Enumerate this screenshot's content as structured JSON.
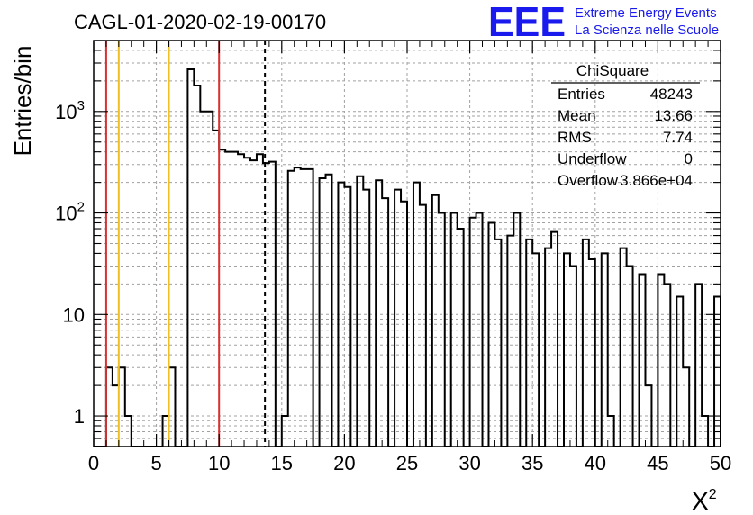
{
  "chart_data": {
    "type": "bar",
    "title": "CAGL-01-2020-02-19-00170",
    "xlabel": "X",
    "xlabel_superscript": "2",
    "ylabel": "Entries/bin",
    "xlim": [
      0,
      50
    ],
    "ylim": [
      0.5,
      5000
    ],
    "yscale": "log",
    "grid": true,
    "bin_width": 0.5,
    "x_ticks": [
      "0",
      "5",
      "10",
      "15",
      "20",
      "25",
      "30",
      "35",
      "40",
      "45",
      "50"
    ],
    "y_ticks": [
      {
        "value": 1,
        "label": "1"
      },
      {
        "value": 10,
        "label": "10"
      },
      {
        "value": 100,
        "label": "10",
        "exp": "2"
      },
      {
        "value": 1000,
        "label": "10",
        "exp": "3"
      }
    ],
    "values": [
      0,
      0,
      3,
      2,
      3,
      1,
      0,
      0,
      0,
      0,
      0,
      1,
      3,
      0,
      0,
      2600,
      1800,
      1000,
      1000,
      650,
      420,
      400,
      400,
      380,
      350,
      330,
      380,
      310,
      320,
      0,
      1,
      260,
      280,
      270,
      270,
      0,
      220,
      240,
      0,
      200,
      180,
      0,
      230,
      170,
      0,
      210,
      140,
      0,
      170,
      130,
      0,
      200,
      120,
      0,
      150,
      100,
      0,
      100,
      70,
      0,
      90,
      100,
      0,
      80,
      55,
      0,
      60,
      100,
      0,
      55,
      40,
      0,
      45,
      65,
      0,
      40,
      30,
      0,
      55,
      35,
      0,
      40,
      1,
      0,
      45,
      30,
      0,
      25,
      2,
      0,
      25,
      20,
      0,
      15,
      3,
      0,
      20,
      1,
      0,
      15
    ],
    "stats": {
      "title": "ChiSquare",
      "rows": [
        {
          "label": "Entries",
          "value": "48243"
        },
        {
          "label": "Mean",
          "value": "13.66"
        },
        {
          "label": "RMS",
          "value": "7.74"
        },
        {
          "label": "Underflow",
          "value": "0"
        },
        {
          "label": "Overflow",
          "value": "3.866e+04"
        }
      ]
    },
    "vertical_lines": [
      {
        "x": 1,
        "color": "#d93030",
        "style": "solid"
      },
      {
        "x": 2,
        "color": "#f0c020",
        "style": "solid"
      },
      {
        "x": 6,
        "color": "#f0c020",
        "style": "solid"
      },
      {
        "x": 10,
        "color": "#d93030",
        "style": "solid"
      },
      {
        "x": 13.66,
        "color": "#000000",
        "style": "dashed"
      }
    ]
  },
  "logo": {
    "mark": "EEE",
    "line1": "Extreme Energy Events",
    "line2": "La Scienza nelle Scuole",
    "color": "#1a1aee"
  }
}
